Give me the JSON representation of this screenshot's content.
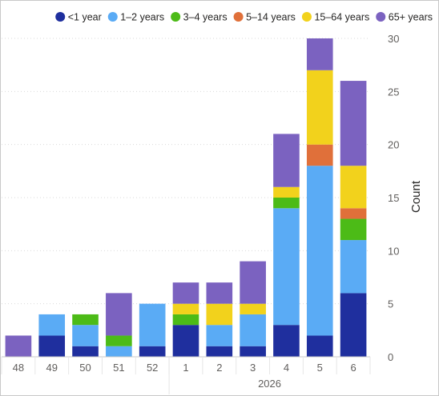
{
  "chart_data": {
    "type": "bar",
    "stacked": true,
    "categories": [
      "48",
      "49",
      "50",
      "51",
      "52",
      "1",
      "2",
      "3",
      "4",
      "5",
      "6"
    ],
    "group_label": "2026",
    "group_start_index": 5,
    "xlabel": "",
    "ylabel": "Count",
    "ylim": [
      0,
      30
    ],
    "yticks": [
      0,
      5,
      10,
      15,
      20,
      25,
      30
    ],
    "y_axis_position": "right",
    "grid": true,
    "legend_position": "top",
    "series": [
      {
        "name": "<1 year",
        "color": "#1f2f9e",
        "values": [
          0,
          2,
          1,
          0,
          1,
          3,
          1,
          1,
          3,
          2,
          6
        ]
      },
      {
        "name": "1–2 years",
        "color": "#5aabf5",
        "values": [
          0,
          2,
          2,
          1,
          4,
          0,
          2,
          3,
          11,
          16,
          5
        ]
      },
      {
        "name": "3–4 years",
        "color": "#4cbb17",
        "values": [
          0,
          0,
          1,
          1,
          0,
          1,
          0,
          0,
          1,
          0,
          2
        ]
      },
      {
        "name": "5–14 years",
        "color": "#e0703a",
        "values": [
          0,
          0,
          0,
          0,
          0,
          0,
          0,
          0,
          0,
          2,
          1
        ]
      },
      {
        "name": "15–64 years",
        "color": "#f2d21c",
        "values": [
          0,
          0,
          0,
          0,
          0,
          1,
          2,
          1,
          1,
          7,
          4
        ]
      },
      {
        "name": "65+ years",
        "color": "#7b62c0",
        "values": [
          2,
          0,
          0,
          4,
          0,
          2,
          2,
          4,
          5,
          3,
          8
        ]
      }
    ]
  }
}
